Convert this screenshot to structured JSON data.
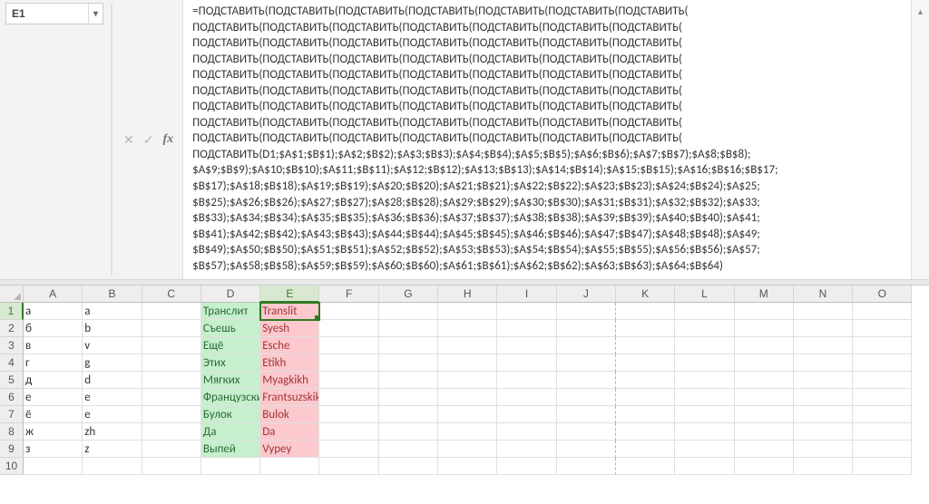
{
  "name_box": {
    "value": "E1"
  },
  "formula_bar": {
    "text": "=ПОДСТАВИТЬ(ПОДСТАВИТЬ(ПОДСТАВИТЬ(ПОДСТАВИТЬ(ПОДСТАВИТЬ(ПОДСТАВИТЬ(ПОДСТАВИТЬ(\nПОДСТАВИТЬ(ПОДСТАВИТЬ(ПОДСТАВИТЬ(ПОДСТАВИТЬ(ПОДСТАВИТЬ(ПОДСТАВИТЬ(ПОДСТАВИТЬ(\nПОДСТАВИТЬ(ПОДСТАВИТЬ(ПОДСТАВИТЬ(ПОДСТАВИТЬ(ПОДСТАВИТЬ(ПОДСТАВИТЬ(ПОДСТАВИТЬ(\nПОДСТАВИТЬ(ПОДСТАВИТЬ(ПОДСТАВИТЬ(ПОДСТАВИТЬ(ПОДСТАВИТЬ(ПОДСТАВИТЬ(ПОДСТАВИТЬ(\nПОДСТАВИТЬ(ПОДСТАВИТЬ(ПОДСТАВИТЬ(ПОДСТАВИТЬ(ПОДСТАВИТЬ(ПОДСТАВИТЬ(ПОДСТАВИТЬ(\nПОДСТАВИТЬ(ПОДСТАВИТЬ(ПОДСТАВИТЬ(ПОДСТАВИТЬ(ПОДСТАВИТЬ(ПОДСТАВИТЬ(ПОДСТАВИТЬ(\nПОДСТАВИТЬ(ПОДСТАВИТЬ(ПОДСТАВИТЬ(ПОДСТАВИТЬ(ПОДСТАВИТЬ(ПОДСТАВИТЬ(ПОДСТАВИТЬ(\nПОДСТАВИТЬ(ПОДСТАВИТЬ(ПОДСТАВИТЬ(ПОДСТАВИТЬ(ПОДСТАВИТЬ(ПОДСТАВИТЬ(ПОДСТАВИТЬ(\nПОДСТАВИТЬ(ПОДСТАВИТЬ(ПОДСТАВИТЬ(ПОДСТАВИТЬ(ПОДСТАВИТЬ(ПОДСТАВИТЬ(ПОДСТАВИТЬ(\nПОДСТАВИТЬ(D1;$A$1;$B$1);$A$2;$B$2);$A$3;$B$3);$A$4;$B$4);$A$5;$B$5);$A$6;$B$6);$A$7;$B$7);$A$8;$B$8);\n$A$9;$B$9);$A$10;$B$10);$A$11;$B$11);$A$12;$B$12);$A$13;$B$13);$A$14;$B$14);$A$15;$B$15);$A$16;$B$16;$B$17;\n$B$17);$A$18;$B$18);$A$19;$B$19);$A$20;$B$20);$A$21;$B$21);$A$22;$B$22);$A$23;$B$23);$A$24;$B$24);$A$25;\n$B$25);$A$26;$B$26);$A$27;$B$27);$A$28;$B$28);$A$29;$B$29);$A$30;$B$30);$A$31;$B$31);$A$32;$B$32);$A$33;\n$B$33);$A$34;$B$34);$A$35;$B$35);$A$36;$B$36);$A$37;$B$37);$A$38;$B$38);$A$39;$B$39);$A$40;$B$40);$A$41;\n$B$41);$A$42;$B$42);$A$43;$B$43);$A$44;$B$44);$A$45;$B$45);$A$46;$B$46);$A$47;$B$47);$A$48;$B$48);$A$49;\n$B$49);$A$50;$B$50);$A$51;$B$51);$A$52;$B$52);$A$53;$B$53);$A$54;$B$54);$A$55;$B$55);$A$56;$B$56);$A$57;\n$B$57);$A$58;$B$58);$A$59;$B$59);$A$60;$B$60);$A$61;$B$61);$A$62;$B$62);$A$63;$B$63);$A$64;$B$64)"
  },
  "grid": {
    "columns": [
      "A",
      "B",
      "C",
      "D",
      "E",
      "F",
      "G",
      "H",
      "I",
      "J",
      "K",
      "L",
      "M",
      "N",
      "O"
    ],
    "active_col_index": 4,
    "active_row_index": 0,
    "row_numbers": [
      1,
      2,
      3,
      4,
      5,
      6,
      7,
      8,
      9,
      10
    ],
    "dashed_right_col_index": 9,
    "num_cols": 15,
    "num_rows": 10,
    "rows": [
      {
        "A": "а",
        "B": "a",
        "D": "Транслит",
        "E": "Translit"
      },
      {
        "A": "б",
        "B": "b",
        "D": "Съешь",
        "E": "Syesh"
      },
      {
        "A": "в",
        "B": "v",
        "D": "Ещё",
        "E": "Esche"
      },
      {
        "A": "г",
        "B": "g",
        "D": "Этих",
        "E": "Etikh"
      },
      {
        "A": "д",
        "B": "d",
        "D": "Мягких",
        "E": "Myagkikh"
      },
      {
        "A": "е",
        "B": "e",
        "D": "Французских",
        "E": "Frantsuzskikh"
      },
      {
        "A": "ё",
        "B": "e",
        "D": "Булок",
        "E": "Bulok"
      },
      {
        "A": "ж",
        "B": "zh",
        "D": "Да",
        "E": "Da"
      },
      {
        "A": "з",
        "B": "z",
        "D": "Выпей",
        "E": "Vypey"
      },
      {
        "A": "",
        "B": "",
        "D": "",
        "E": ""
      }
    ],
    "col_styles": {
      "D": "green",
      "E": "red"
    }
  },
  "colors": {
    "green_fill": "#c6efcd",
    "green_text": "#2e6b36",
    "red_fill": "#fbc9ce",
    "red_text": "#a33639",
    "selection": "#2f7a22",
    "header_bg": "#eeeeee"
  },
  "symbols": {
    "dropdown": "▾",
    "cancel": "✕",
    "confirm": "✓",
    "expand_up": "▴"
  }
}
